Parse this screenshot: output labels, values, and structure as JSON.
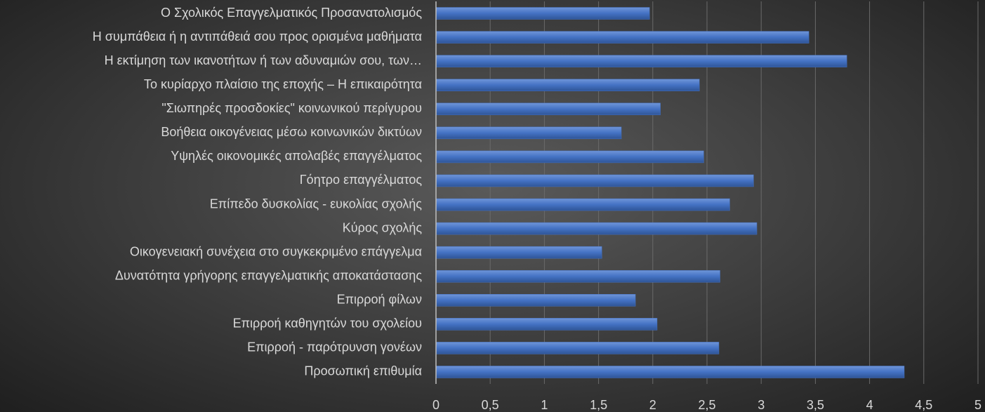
{
  "chart_data": {
    "type": "barh",
    "categories": [
      "Ο Σχολικός Επαγγελματικός Προσανατολισμός",
      "Η συμπάθεια ή η αντιπάθειά σου προς ορισμένα μαθήματα",
      "Η εκτίμηση των ικανοτήτων ή των αδυναμιών σου, των…",
      "Το κυρίαρχο πλαίσιο της εποχής – Η επικαιρότητα",
      "\"Σιωπηρές προσδοκίες\" κοινωνικού περίγυρου",
      "Βοήθεια οικογένειας μέσω κοινωνικών δικτύων",
      "Υψηλές οικονομικές απολαβές επαγγέλματος",
      "Γόητρο επαγγέλματος",
      "Επίπεδο δυσκολίας - ευκολίας σχολής",
      "Κύρος σχολής",
      "Οικογενειακή συνέχεια στο συγκεκριμένο επάγγελμα",
      "Δυνατότητα γρήγορης επαγγελματικής αποκατάστασης",
      "Επιρροή φίλων",
      "Επιρροή καθηγητών του σχολείου",
      "Επιρροή - παρότρυνση γονέων",
      "Προσωπική επιθυμία"
    ],
    "values": [
      1.97,
      3.44,
      3.79,
      2.43,
      2.07,
      1.71,
      2.47,
      2.93,
      2.71,
      2.96,
      1.53,
      2.62,
      1.84,
      2.04,
      2.61,
      4.32
    ],
    "color": "#4472c4",
    "xlim": [
      0,
      5
    ],
    "xticks": [
      0,
      {
        "value": 0.5,
        "label": "0,5"
      },
      1,
      {
        "value": 1.5,
        "label": "1,5"
      },
      2,
      {
        "value": 2.5,
        "label": "2,5"
      },
      3,
      {
        "value": 3.5,
        "label": "3,5"
      },
      4,
      {
        "value": 4.5,
        "label": "4,5"
      },
      5
    ],
    "grid": true
  }
}
